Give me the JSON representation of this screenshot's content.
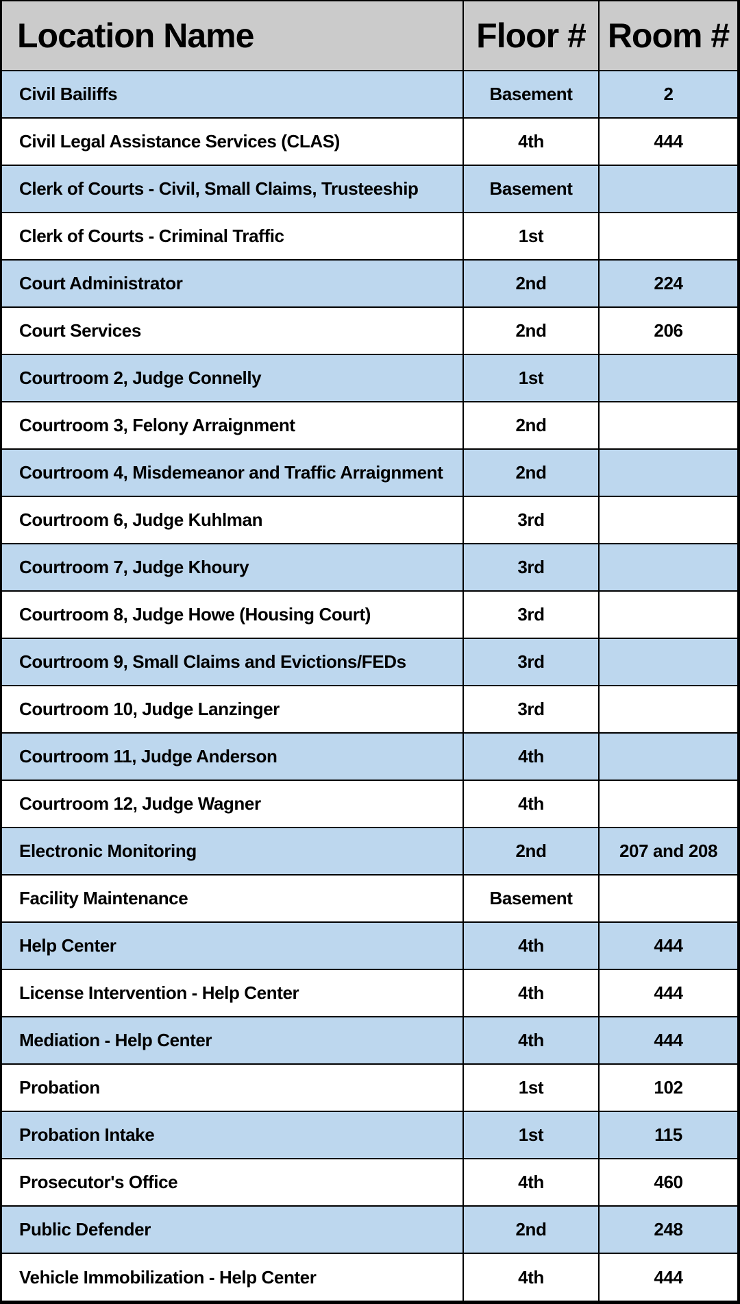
{
  "colors": {
    "header_bg": "#cbcbcb",
    "stripe_blue": "#bdd7ee",
    "stripe_white": "#ffffff",
    "border": "#000000",
    "text": "#000000"
  },
  "table": {
    "columns": [
      {
        "label": "Location Name"
      },
      {
        "label": "Floor #"
      },
      {
        "label": "Room #"
      }
    ],
    "rows": [
      {
        "location": "Civil Bailiffs",
        "floor": "Basement",
        "room": "2"
      },
      {
        "location": "Civil Legal Assistance Services (CLAS)",
        "floor": "4th",
        "room": "444"
      },
      {
        "location": "Clerk of Courts - Civil, Small Claims, Trusteeship",
        "floor": "Basement",
        "room": ""
      },
      {
        "location": "Clerk of Courts - Criminal Traffic",
        "floor": "1st",
        "room": ""
      },
      {
        "location": "Court Administrator",
        "floor": "2nd",
        "room": "224"
      },
      {
        "location": "Court Services",
        "floor": "2nd",
        "room": "206"
      },
      {
        "location": "Courtroom 2, Judge Connelly",
        "floor": "1st",
        "room": ""
      },
      {
        "location": "Courtroom 3, Felony Arraignment",
        "floor": "2nd",
        "room": ""
      },
      {
        "location": "Courtroom 4, Misdemeanor and Traffic Arraignment",
        "floor": "2nd",
        "room": ""
      },
      {
        "location": "Courtroom 6, Judge Kuhlman",
        "floor": "3rd",
        "room": ""
      },
      {
        "location": "Courtroom 7, Judge Khoury",
        "floor": "3rd",
        "room": ""
      },
      {
        "location": "Courtroom 8, Judge Howe (Housing Court)",
        "floor": "3rd",
        "room": ""
      },
      {
        "location": "Courtroom 9, Small Claims and Evictions/FEDs",
        "floor": "3rd",
        "room": ""
      },
      {
        "location": "Courtroom 10, Judge Lanzinger",
        "floor": "3rd",
        "room": ""
      },
      {
        "location": "Courtroom 11, Judge Anderson",
        "floor": "4th",
        "room": ""
      },
      {
        "location": "Courtroom 12, Judge Wagner",
        "floor": "4th",
        "room": ""
      },
      {
        "location": "Electronic Monitoring",
        "floor": "2nd",
        "room": "207 and 208"
      },
      {
        "location": "Facility Maintenance",
        "floor": "Basement",
        "room": ""
      },
      {
        "location": "Help Center",
        "floor": "4th",
        "room": "444"
      },
      {
        "location": "License Intervention - Help Center",
        "floor": "4th",
        "room": "444"
      },
      {
        "location": "Mediation - Help Center",
        "floor": "4th",
        "room": "444"
      },
      {
        "location": "Probation",
        "floor": "1st",
        "room": "102"
      },
      {
        "location": "Probation Intake",
        "floor": "1st",
        "room": "115"
      },
      {
        "location": "Prosecutor's Office",
        "floor": "4th",
        "room": "460"
      },
      {
        "location": "Public Defender",
        "floor": "2nd",
        "room": "248"
      },
      {
        "location": "Vehicle Immobilization - Help Center",
        "floor": "4th",
        "room": "444"
      }
    ]
  }
}
